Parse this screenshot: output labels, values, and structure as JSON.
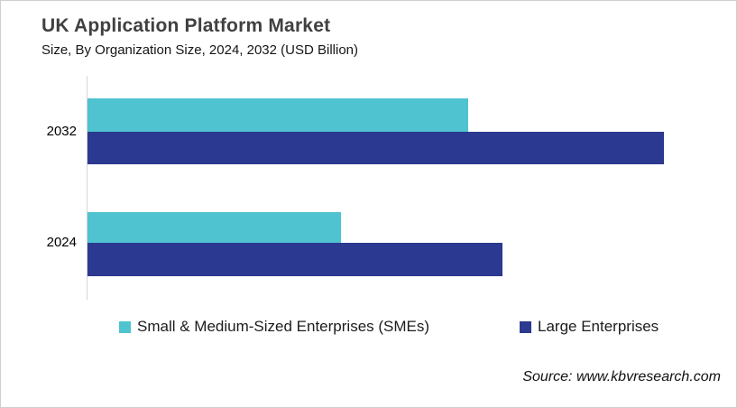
{
  "header": {
    "title": "UK Application Platform Market",
    "subtitle": "Size, By Organization Size, 2024, 2032 (USD Billion)"
  },
  "chart_data": {
    "type": "bar",
    "orientation": "horizontal",
    "title": "UK Application Platform Market",
    "subtitle": "Size, By Organization Size, 2024, 2032 (USD Billion)",
    "unit": "USD Billion",
    "categories": [
      "2032",
      "2024"
    ],
    "series": [
      {
        "name": "Small & Medium-Sized Enterprises (SMEs)",
        "color": "#4FC3CF",
        "values": [
          66,
          44
        ]
      },
      {
        "name": "Large Enterprises",
        "color": "#2B3990",
        "values": [
          100,
          72
        ]
      }
    ],
    "xlim": [
      0,
      112
    ],
    "value_note": "No numeric value axis or data labels shown in chart; values are relative bar lengths scaled so the longest bar (Large Enterprises 2032) = 100",
    "grid": false,
    "legend_position": "bottom",
    "axis_line_color": "#d6d6d6"
  },
  "legend": {
    "items": [
      {
        "label": "Small & Medium-Sized Enterprises (SMEs)",
        "color": "#4FC3CF"
      },
      {
        "label": "Large Enterprises",
        "color": "#2B3990"
      }
    ]
  },
  "source": {
    "text": "Source: www.kbvresearch.com"
  }
}
